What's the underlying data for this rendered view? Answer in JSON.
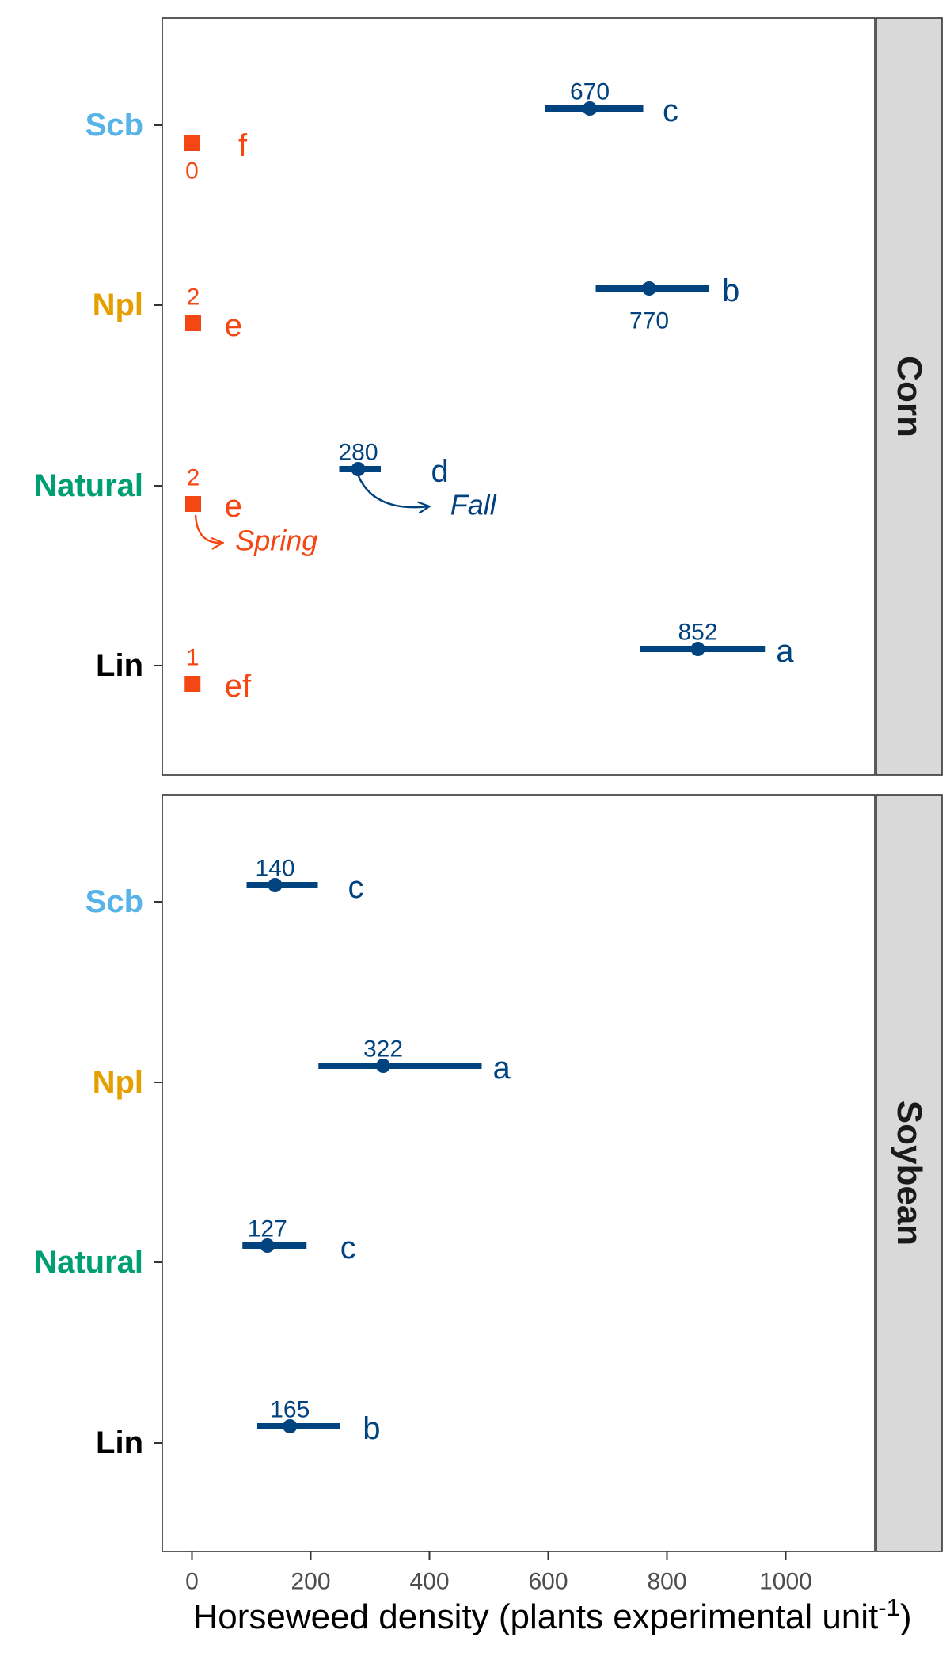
{
  "chart_data": {
    "type": "scatter",
    "xlabel_main": "Horseweed density (plants experimental unit",
    "xlabel_sup": "-1",
    "xlabel_close": ")",
    "xlim": [
      -50,
      1150
    ],
    "x_ticks": [
      0,
      200,
      400,
      600,
      800,
      1000
    ],
    "x_tick_labels": [
      "0",
      "200",
      "400",
      "600",
      "800",
      "1000"
    ],
    "grid": false,
    "categories": [
      "Scb",
      "Npl",
      "Natural",
      "Lin"
    ],
    "category_colors": {
      "Scb": "#56b4e9",
      "Npl": "#e69f00",
      "Natural": "#009e73",
      "Lin": "#000000"
    },
    "series_colors": {
      "Fall": "#00437f",
      "Spring": "#f54714"
    },
    "panels": [
      {
        "name": "Corn",
        "series": [
          {
            "name": "Fall",
            "points": [
              {
                "cat": "Scb",
                "value": 670,
                "low": 595,
                "high": 760,
                "label": "670",
                "letter": "c"
              },
              {
                "cat": "Npl",
                "value": 770,
                "low": 680,
                "high": 870,
                "label": "770",
                "letter": "b"
              },
              {
                "cat": "Natural",
                "value": 280,
                "low": 248,
                "high": 318,
                "label": "280",
                "letter": "d"
              },
              {
                "cat": "Lin",
                "value": 852,
                "low": 755,
                "high": 965,
                "label": "852",
                "letter": "a"
              }
            ]
          },
          {
            "name": "Spring",
            "points": [
              {
                "cat": "Scb",
                "value": 0,
                "label": "0",
                "letter": "f"
              },
              {
                "cat": "Npl",
                "value": 2,
                "label": "2",
                "letter": "e"
              },
              {
                "cat": "Natural",
                "value": 2,
                "label": "2",
                "letter": "e"
              },
              {
                "cat": "Lin",
                "value": 1,
                "label": "1",
                "letter": "ef"
              }
            ]
          }
        ],
        "annotations": [
          {
            "text": "Fall",
            "series": "Fall"
          },
          {
            "text": "Spring",
            "series": "Spring"
          }
        ]
      },
      {
        "name": "Soybean",
        "series": [
          {
            "name": "Fall",
            "points": [
              {
                "cat": "Scb",
                "value": 140,
                "low": 92,
                "high": 212,
                "label": "140",
                "letter": "c"
              },
              {
                "cat": "Npl",
                "value": 322,
                "low": 213,
                "high": 488,
                "label": "322",
                "letter": "a"
              },
              {
                "cat": "Natural",
                "value": 127,
                "low": 85,
                "high": 193,
                "label": "127",
                "letter": "c"
              },
              {
                "cat": "Lin",
                "value": 165,
                "low": 110,
                "high": 250,
                "label": "165",
                "letter": "b"
              }
            ]
          }
        ],
        "annotations": []
      }
    ]
  }
}
